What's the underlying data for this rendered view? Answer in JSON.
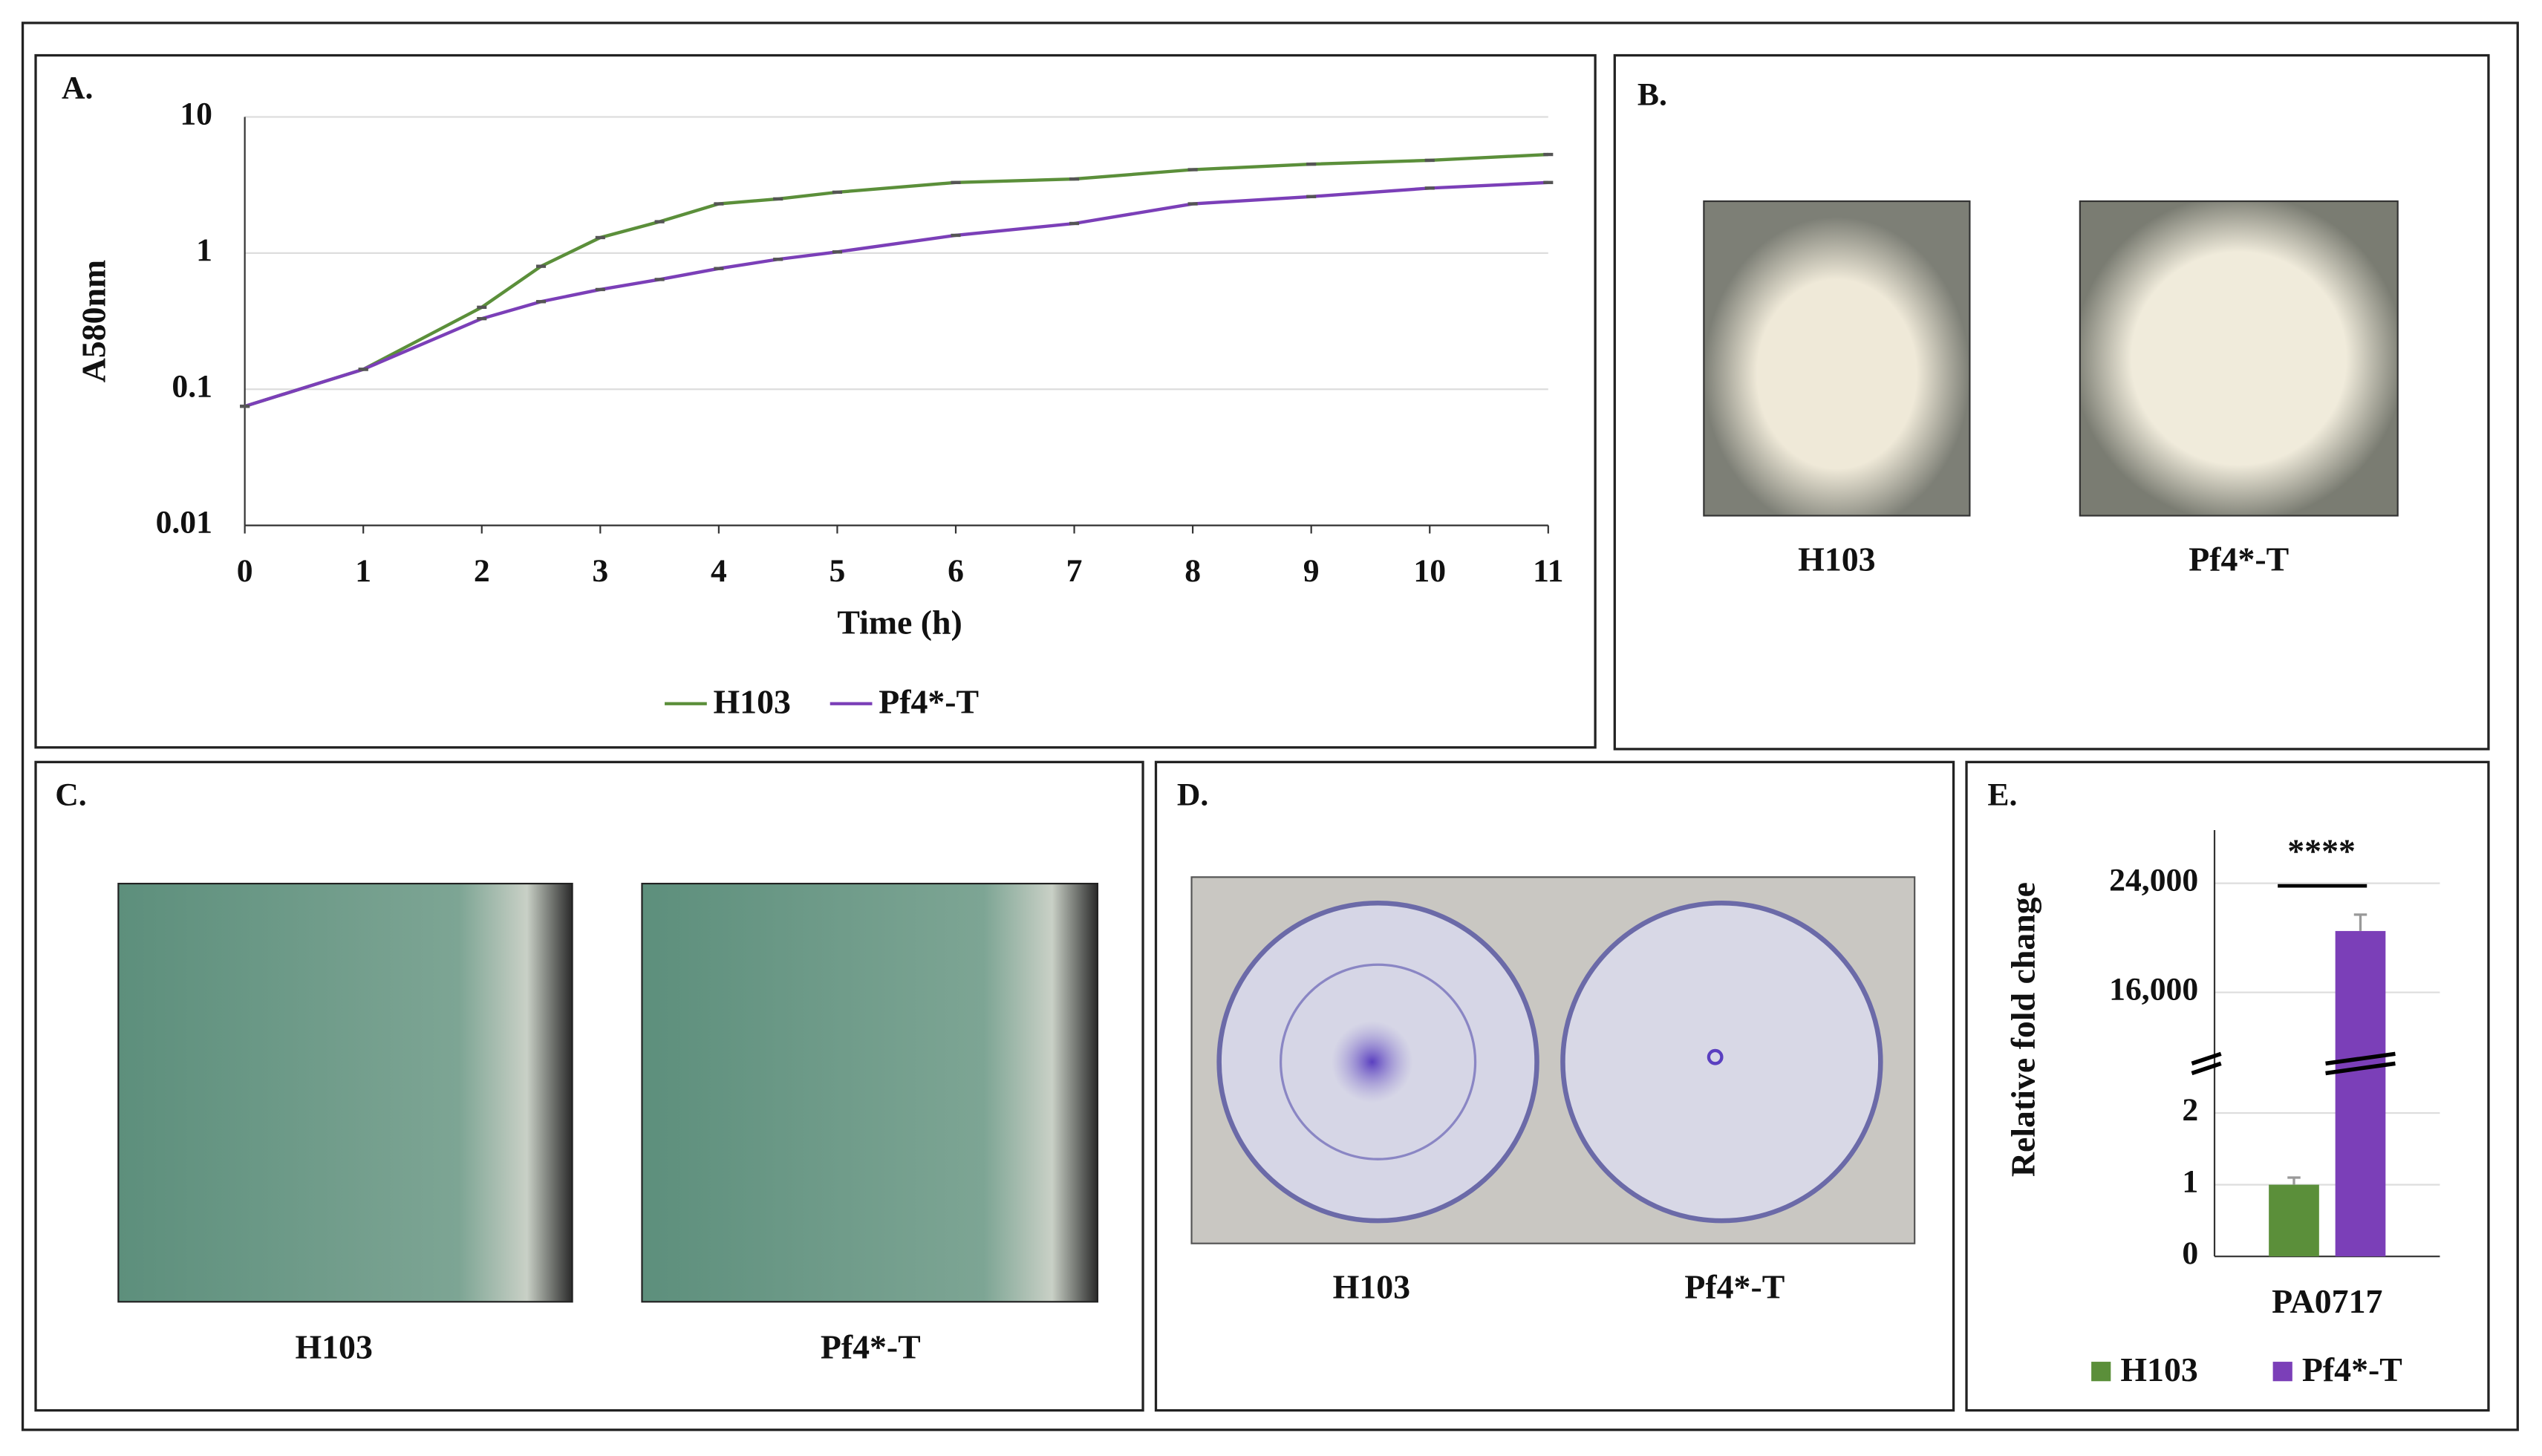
{
  "chart_data": [
    {
      "type": "line",
      "panel": "A.",
      "xlabel": "Time (h)",
      "ylabel": "A580nm",
      "log_y": true,
      "x": [
        0,
        1,
        2,
        2.5,
        3,
        3.5,
        4,
        4.5,
        5,
        6,
        7,
        8,
        9,
        10,
        11
      ],
      "series": [
        {
          "name": "H103",
          "color": "#5b8f3a",
          "values": [
            0.075,
            0.14,
            0.4,
            0.8,
            1.3,
            1.7,
            2.3,
            2.5,
            2.8,
            3.3,
            3.5,
            4.1,
            4.5,
            4.8,
            5.3
          ]
        },
        {
          "name": "Pf4*-T",
          "color": "#7b3fb8",
          "values": [
            0.075,
            0.14,
            0.33,
            0.44,
            0.54,
            0.64,
            0.77,
            0.9,
            1.02,
            1.35,
            1.65,
            2.3,
            2.6,
            3.0,
            3.3
          ]
        }
      ],
      "xlim": [
        0,
        11
      ],
      "xticks": [
        0,
        1,
        2,
        3,
        4,
        5,
        6,
        7,
        8,
        9,
        10,
        11
      ],
      "ylim": [
        0.01,
        10
      ],
      "yticks": [
        0.01,
        0.1,
        1,
        10
      ],
      "grid": true,
      "legend": "bottom"
    },
    {
      "type": "bar",
      "panel": "E.",
      "ylabel": "Relative  fold change",
      "categories": [
        "PA0717"
      ],
      "series": [
        {
          "name": "H103",
          "color": "#5b8f3a",
          "values": [
            1
          ],
          "errors": [
            0.1
          ]
        },
        {
          "name": "Pf4*-T",
          "color": "#7b3fb8",
          "values": [
            20500
          ],
          "errors": [
            1200
          ]
        }
      ],
      "ylim": [
        0,
        27900
      ],
      "axis_break": [
        2.6,
        10900
      ],
      "yticks": [
        0,
        1,
        2,
        {
          "value": 16000,
          "label": "16,000"
        },
        {
          "value": 24000,
          "label": "24,000"
        }
      ],
      "annotation": "****",
      "grid": true,
      "legend": "bottom"
    }
  ],
  "photo_panels": [
    {
      "label": "B.",
      "captions": [
        "H103",
        "Pf4*-T"
      ]
    },
    {
      "label": "C.",
      "captions": [
        "H103",
        "Pf4*-T"
      ]
    },
    {
      "label": "D.",
      "captions": [
        "H103",
        "Pf4*-T"
      ]
    }
  ]
}
